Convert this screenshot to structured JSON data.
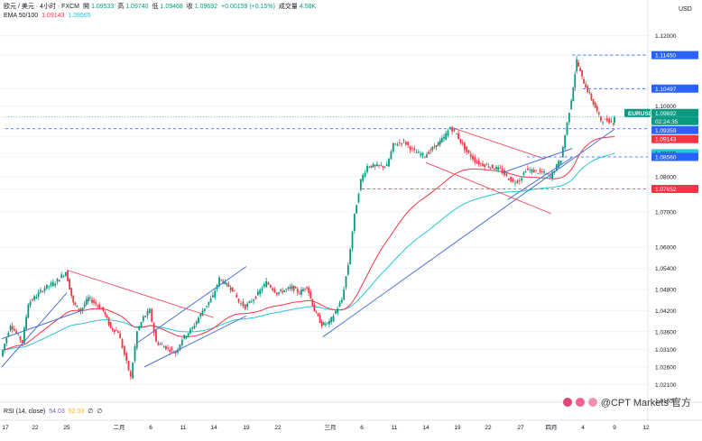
{
  "header": {
    "symbol_line": "欧元 / 美元 · 4小时 · FXCM",
    "open_label": "開",
    "open": "1.09533",
    "high_label": "高",
    "high": "1.09740",
    "low_label": "低",
    "low": "1.09468",
    "close_label": "收",
    "close": "1.09692",
    "change": "+0.00159 (+0.15%)",
    "volume_label": "成交量",
    "volume": "4.58K",
    "ema_label": "EMA 50/100",
    "ema_fast": "1.09143",
    "ema_slow": "1.08665",
    "rsi_label": "RSI (14, close)",
    "rsi_value": "54.03",
    "rsi_ma_value": "52.03",
    "rsi_extra_1": "∅",
    "rsi_extra_2": "∅"
  },
  "watermark": "@CPT Markets 官方",
  "colors": {
    "up": "#089981",
    "down": "#f23645",
    "ema_fast": "#f23645",
    "ema_slow": "#26c6da",
    "trendline": "#4a72d9",
    "trendline_red": "#f05a6a",
    "level_blue": "#2962ff",
    "level_red": "#f23645",
    "axis_text": "#131722",
    "grid": "#f0f3fa"
  },
  "chart_data": {
    "type": "candlestick",
    "title": "欧元 / 美元 · 4小时 · FXCM",
    "instrument": "EURUSD",
    "currency": "USD",
    "ylim": [
      1.0165,
      1.1245
    ],
    "y_ticks": [
      "1.12000",
      "1.11450",
      "1.10497",
      "1.10000",
      "1.09692",
      "1.09359",
      "1.09143",
      "1.08665",
      "1.08560",
      "1.08000",
      "1.07652",
      "1.07000",
      "1.06000",
      "1.05400",
      "1.04800",
      "1.04200",
      "1.03600",
      "1.03100",
      "1.02600",
      "1.02100",
      "1.01650"
    ],
    "x_ticks": [
      "17",
      "22",
      "25",
      "二月",
      "6",
      "11",
      "14",
      "19",
      "22",
      "三月",
      "6",
      "11",
      "14",
      "19",
      "22",
      "27",
      "四月",
      "4",
      "9",
      "12"
    ],
    "price_labels": [
      {
        "text": "EURUSD",
        "value": 1.09692,
        "style": "symbol"
      },
      {
        "text": "1.09692",
        "value": 1.09692,
        "style": "last"
      },
      {
        "text": "02:24:35",
        "value": 1.09692,
        "style": "countdown"
      },
      {
        "text": "1.09359",
        "value": 1.09359,
        "style": "level"
      },
      {
        "text": "1.09143",
        "value": 1.09143,
        "style": "ema_fast"
      },
      {
        "text": "1.08665",
        "value": 1.08665,
        "style": "ema_slow"
      },
      {
        "text": "1.08560",
        "value": 1.0856,
        "style": "level"
      },
      {
        "text": "1.11450",
        "value": 1.1145,
        "style": "level"
      },
      {
        "text": "1.10497",
        "value": 1.10497,
        "style": "level"
      },
      {
        "text": "1.07652",
        "value": 1.07652,
        "style": "level_red"
      }
    ],
    "horizontal_levels": [
      {
        "value": 1.1145,
        "style": "blue_dashed",
        "from_x": "04-03"
      },
      {
        "value": 1.10497,
        "style": "blue_dashed",
        "from_x": "04-04"
      },
      {
        "value": 1.09359,
        "style": "blue_dashed",
        "from_x": "01-17"
      },
      {
        "value": 1.0856,
        "style": "blue_dashed",
        "from_x": "03-28"
      },
      {
        "value": 1.07652,
        "style": "red_dashed",
        "from_x": "03-06"
      },
      {
        "value": 1.09692,
        "style": "last_price",
        "from_x": "01-17"
      }
    ],
    "trendlines": [
      {
        "color": "blue",
        "points": [
          [
            "01-16",
            1.026
          ],
          [
            "01-25",
            1.047
          ]
        ]
      },
      {
        "color": "blue",
        "points": [
          [
            "01-27",
            1.042
          ],
          [
            "01-16",
            1.034
          ]
        ]
      },
      {
        "color": "blue",
        "points": [
          [
            "02-04",
            1.033
          ],
          [
            "02-19",
            1.0545
          ]
        ]
      },
      {
        "color": "blue",
        "points": [
          [
            "02-05",
            1.026
          ],
          [
            "02-19",
            1.0405
          ]
        ]
      },
      {
        "color": "red",
        "points": [
          [
            "01-25",
            1.0535
          ],
          [
            "02-14",
            1.04
          ]
        ]
      },
      {
        "color": "blue",
        "points": [
          [
            "02-28",
            1.0345
          ],
          [
            "04-09",
            1.0935
          ]
        ]
      },
      {
        "color": "red",
        "points": [
          [
            "03-18",
            1.094
          ],
          [
            "03-31",
            1.085
          ]
        ]
      },
      {
        "color": "red",
        "points": [
          [
            "03-14",
            1.084
          ],
          [
            "04-01",
            1.0695
          ]
        ]
      },
      {
        "color": "blue",
        "points": [
          [
            "03-25",
            1.0735
          ],
          [
            "04-03",
            1.0855
          ]
        ]
      },
      {
        "color": "blue",
        "points": [
          [
            "03-24",
            1.081
          ],
          [
            "04-03",
            1.088
          ]
        ]
      }
    ],
    "ohlc_path": [
      [
        "01-16",
        1.029,
        1.0305
      ],
      [
        "01-18",
        1.038,
        1.036
      ],
      [
        "01-20",
        1.033,
        1.0345
      ],
      [
        "01-21",
        1.044,
        1.042
      ],
      [
        "01-23",
        1.0485,
        1.044
      ],
      [
        "01-24",
        1.05,
        1.052
      ],
      [
        "01-25",
        1.053,
        1.046
      ],
      [
        "01-26",
        1.044,
        1.045
      ],
      [
        "01-27",
        1.042,
        1.0435
      ],
      [
        "01-28",
        1.0455,
        1.041
      ],
      [
        "01-29",
        1.044,
        1.0435
      ],
      [
        "01-30",
        1.042,
        1.039
      ],
      [
        "01-31",
        1.037,
        1.039
      ],
      [
        "02-01",
        1.036,
        1.033
      ],
      [
        "02-03",
        1.023,
        1.027
      ],
      [
        "02-04",
        1.036,
        1.034
      ],
      [
        "02-05",
        1.04,
        1.039
      ],
      [
        "02-06",
        1.042,
        1.0405
      ],
      [
        "02-07",
        1.033,
        1.031
      ],
      [
        "02-10",
        1.03,
        1.032
      ],
      [
        "02-11",
        1.034,
        1.035
      ],
      [
        "02-12",
        1.037,
        1.0385
      ],
      [
        "02-13",
        1.042,
        1.041
      ],
      [
        "02-14",
        1.046,
        1.049
      ],
      [
        "02-15",
        1.051,
        1.05
      ],
      [
        "02-17",
        1.048,
        1.0485
      ],
      [
        "02-18",
        1.0445,
        1.044
      ],
      [
        "02-19",
        1.043,
        1.0435
      ],
      [
        "02-20",
        1.046,
        1.0475
      ],
      [
        "02-21",
        1.05,
        1.049
      ],
      [
        "02-22",
        1.047,
        1.0475
      ],
      [
        "02-24",
        1.0485,
        1.0475
      ],
      [
        "02-25",
        1.047,
        1.047
      ],
      [
        "02-26",
        1.049,
        1.048
      ],
      [
        "02-27",
        1.042,
        1.041
      ],
      [
        "02-28",
        1.038,
        1.0375
      ],
      [
        "03-01",
        1.0385,
        1.039
      ],
      [
        "03-03",
        1.045,
        1.048
      ],
      [
        "03-04",
        1.055,
        1.06
      ],
      [
        "03-05",
        1.069,
        1.076
      ],
      [
        "03-06",
        1.079,
        1.08
      ],
      [
        "03-07",
        1.083,
        1.085
      ],
      [
        "03-10",
        1.083,
        1.082
      ],
      [
        "03-11",
        1.089,
        1.0905
      ],
      [
        "03-12",
        1.09,
        1.0895
      ],
      [
        "03-13",
        1.087,
        1.0865
      ],
      [
        "03-14",
        1.086,
        1.088
      ],
      [
        "03-17",
        1.091,
        1.09
      ],
      [
        "03-18",
        1.094,
        1.0935
      ],
      [
        "03-19",
        1.092,
        1.0915
      ],
      [
        "03-20",
        1.087,
        1.086
      ],
      [
        "03-21",
        1.084,
        1.083
      ],
      [
        "03-24",
        1.082,
        1.0825
      ],
      [
        "03-25",
        1.08,
        1.0805
      ],
      [
        "03-26",
        1.0785,
        1.079
      ],
      [
        "03-27",
        1.079,
        1.0795
      ],
      [
        "03-28",
        1.082,
        1.0815
      ],
      [
        "03-31",
        1.081,
        1.0815
      ],
      [
        "04-01",
        1.08,
        1.082
      ],
      [
        "04-02",
        1.085,
        1.09
      ],
      [
        "04-03",
        1.102,
        1.107
      ],
      [
        "04-03b",
        1.113,
        1.109
      ],
      [
        "04-04",
        1.108,
        1.098
      ],
      [
        "04-07",
        1.096,
        1.0945
      ],
      [
        "04-08",
        1.096,
        1.0955
      ],
      [
        "04-09",
        1.0953,
        1.0969
      ]
    ],
    "ema_fast_end": 1.09143,
    "ema_slow_end": 1.08665,
    "rsi": {
      "label": "RSI (14, close)",
      "value": 54.03,
      "ma": 52.03
    }
  }
}
